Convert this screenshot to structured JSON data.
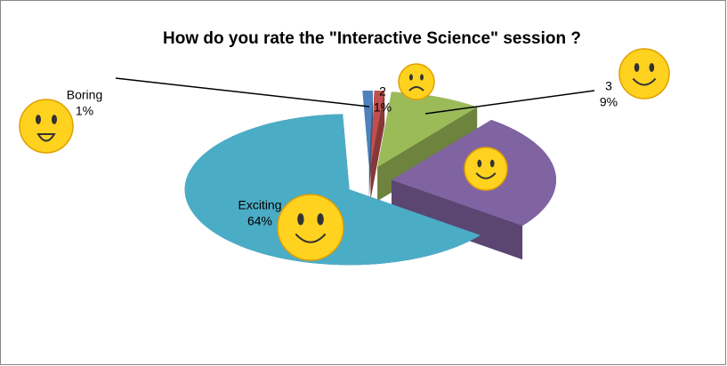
{
  "chart_data": {
    "type": "pie",
    "title": "How do you rate the \"Interactive Science\" session ?",
    "categories": [
      "Boring",
      "2",
      "3",
      null,
      "Exciting"
    ],
    "values": [
      1,
      1,
      9,
      25,
      64
    ],
    "value_labels": [
      "1%",
      "1%",
      "9%",
      null,
      "64%"
    ],
    "colors": [
      "#4f81bd",
      "#c0504d",
      "#9bbb59",
      "#8064a2",
      "#4bacc6"
    ]
  }
}
